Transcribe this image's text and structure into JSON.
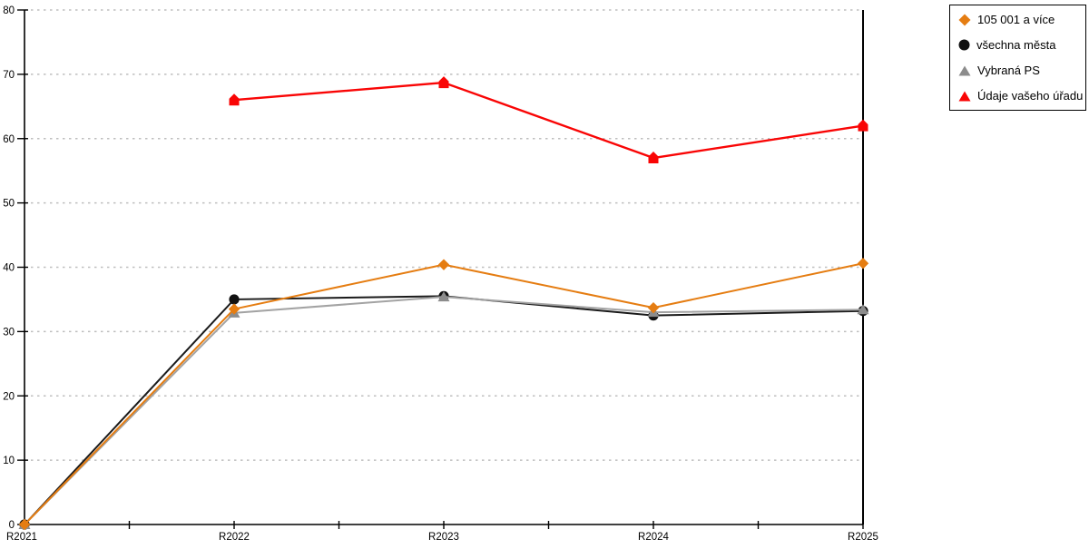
{
  "chart_data": {
    "type": "line",
    "title": "",
    "xlabel": "",
    "ylabel": "",
    "categories": [
      "R2021",
      "R2022",
      "R2023",
      "R2024",
      "R2025"
    ],
    "series": [
      {
        "name": "105 001 a více",
        "color": "#e57d12",
        "line_color": "#e57d12",
        "marker": "diamond",
        "values": [
          0,
          33.5,
          40.4,
          33.7,
          40.6
        ]
      },
      {
        "name": "všechna města",
        "color": "#111111",
        "line_color": "#1a1a1a",
        "marker": "circle",
        "values": [
          0,
          35.0,
          35.5,
          32.5,
          33.2
        ]
      },
      {
        "name": "Vybraná PS",
        "color": "#8c8c8c",
        "line_color": "#a3a3a3",
        "marker": "triangle",
        "values": [
          0,
          32.9,
          35.4,
          33.0,
          33.4
        ]
      },
      {
        "name": "Údaje vašeho úřadu",
        "color": "#f90505",
        "line_color": "#f90505",
        "marker": "pentagon",
        "values": [
          null,
          66,
          68.7,
          57,
          62
        ]
      }
    ],
    "ylim": [
      0,
      80
    ],
    "yticks": [
      0,
      10,
      20,
      30,
      40,
      50,
      60,
      70,
      80
    ],
    "grid": "horizontal-dotted",
    "grid_color": "#bfbfbf",
    "axis_color": "#000000",
    "legend_position": "top-right"
  }
}
